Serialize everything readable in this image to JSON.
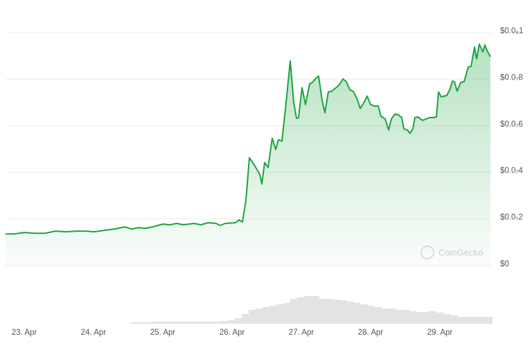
{
  "chart_data": {
    "type": "area",
    "watermark": "CoinGecko",
    "xlim": [
      22.73,
      29.73
    ],
    "xticks": [
      {
        "value": 23,
        "label": "23. Apr"
      },
      {
        "value": 24,
        "label": "24. Apr"
      },
      {
        "value": 25,
        "label": "25. Apr"
      },
      {
        "value": 26,
        "label": "26. Apr"
      },
      {
        "value": 27,
        "label": "27. Apr"
      },
      {
        "value": 28,
        "label": "28. Apr"
      },
      {
        "value": 29,
        "label": "29. Apr"
      }
    ],
    "ylim": [
      0,
      1e-07
    ],
    "yticks": [
      {
        "value": 0,
        "label": "$0"
      },
      {
        "value": 2e-08,
        "label": "$0.0₇2"
      },
      {
        "value": 4e-08,
        "label": "$0.0₇4"
      },
      {
        "value": 6e-08,
        "label": "$0.0₇6"
      },
      {
        "value": 8e-08,
        "label": "$0.0₇8"
      },
      {
        "value": 1e-07,
        "label": "$0.0₆1"
      }
    ],
    "grid": true,
    "color": "#1aa33f",
    "x": [
      22.73,
      22.85,
      23.0,
      23.15,
      23.3,
      23.45,
      23.6,
      23.75,
      23.9,
      24.0,
      24.15,
      24.3,
      24.45,
      24.55,
      24.65,
      24.75,
      24.85,
      25.0,
      25.1,
      25.2,
      25.3,
      25.45,
      25.55,
      25.65,
      25.77,
      25.83,
      25.9,
      26.05,
      26.1,
      26.15,
      26.2,
      26.25,
      26.33,
      26.4,
      26.43,
      26.47,
      26.52,
      26.58,
      26.63,
      26.67,
      26.72,
      26.78,
      26.84,
      26.89,
      26.93,
      26.96,
      27.01,
      27.06,
      27.12,
      27.16,
      27.21,
      27.25,
      27.3,
      27.34,
      27.39,
      27.44,
      27.5,
      27.55,
      27.6,
      27.65,
      27.7,
      27.75,
      27.81,
      27.85,
      27.9,
      27.95,
      28.0,
      28.05,
      28.11,
      28.15,
      28.21,
      28.26,
      28.3,
      28.35,
      28.4,
      28.45,
      28.48,
      28.53,
      28.57,
      28.61,
      28.64,
      28.68,
      28.75,
      28.8,
      28.85,
      28.9,
      28.95,
      28.98,
      29.02,
      29.1,
      29.15,
      29.18,
      29.21,
      29.25,
      29.3,
      29.35,
      29.41,
      29.45,
      29.5,
      29.53,
      29.57,
      29.62,
      29.65,
      29.68,
      29.73
    ],
    "values": [
      1.36e-08,
      1.36e-08,
      1.42e-08,
      1.39e-08,
      1.39e-08,
      1.48e-08,
      1.45e-08,
      1.48e-08,
      1.48e-08,
      1.45e-08,
      1.51e-08,
      1.57e-08,
      1.66e-08,
      1.57e-08,
      1.63e-08,
      1.6e-08,
      1.66e-08,
      1.78e-08,
      1.75e-08,
      1.81e-08,
      1.75e-08,
      1.81e-08,
      1.75e-08,
      1.84e-08,
      1.81e-08,
      1.72e-08,
      1.81e-08,
      1.84e-08,
      1.96e-08,
      1.87e-08,
      2.79e-08,
      4.63e-08,
      4.27e-08,
      3.92e-08,
      3.5e-08,
      4.42e-08,
      4.21e-08,
      5.46e-08,
      4.98e-08,
      5.4e-08,
      5.34e-08,
      7e-08,
      8.78e-08,
      7e-08,
      6.32e-08,
      6.35e-08,
      7.63e-08,
      6.91e-08,
      7.8e-08,
      7.86e-08,
      8.04e-08,
      8.13e-08,
      7.09e-08,
      6.56e-08,
      7.45e-08,
      7.48e-08,
      7.63e-08,
      7.77e-08,
      8.01e-08,
      7.89e-08,
      7.54e-08,
      7.48e-08,
      7.12e-08,
      6.74e-08,
      6.97e-08,
      7.27e-08,
      6.91e-08,
      6.85e-08,
      6.85e-08,
      6.41e-08,
      6.29e-08,
      5.82e-08,
      6.29e-08,
      6.5e-08,
      6.47e-08,
      6.35e-08,
      5.87e-08,
      5.82e-08,
      5.67e-08,
      5.87e-08,
      6.35e-08,
      6.38e-08,
      6.23e-08,
      6.29e-08,
      6.35e-08,
      6.35e-08,
      6.38e-08,
      7.45e-08,
      7.24e-08,
      7.3e-08,
      7.6e-08,
      7.92e-08,
      7.89e-08,
      7.48e-08,
      7.86e-08,
      7.89e-08,
      8.52e-08,
      8.55e-08,
      9.38e-08,
      8.87e-08,
      9.5e-08,
      9.17e-08,
      9.47e-08,
      9.23e-08,
      8.96e-08
    ],
    "volume": {
      "color": "#e3e3e3",
      "x": [
        24.6,
        24.7,
        24.8,
        24.9,
        25.0,
        25.1,
        25.2,
        25.3,
        25.4,
        25.5,
        25.6,
        25.7,
        25.8,
        25.9,
        26.0,
        26.1,
        26.2,
        26.3,
        26.4,
        26.5,
        26.6,
        26.7,
        26.8,
        26.9,
        27.0,
        27.1,
        27.2,
        27.3,
        27.4,
        27.5,
        27.6,
        27.7,
        27.8,
        27.9,
        28.0,
        28.1,
        28.2,
        28.3,
        28.4,
        28.5,
        28.6,
        28.7,
        28.8,
        28.9,
        29.0,
        29.1,
        29.2,
        29.3,
        29.4,
        29.5,
        29.6,
        29.7
      ],
      "values": [
        2,
        2,
        2,
        3,
        3,
        3,
        3,
        3,
        3,
        3,
        3,
        3,
        3,
        4,
        5,
        8,
        14,
        20,
        22,
        24,
        26,
        28,
        30,
        36,
        38,
        40,
        40,
        36,
        36,
        35,
        34,
        32,
        30,
        28,
        26,
        24,
        22,
        22,
        20,
        20,
        18,
        17,
        17,
        18,
        16,
        14,
        12,
        10,
        10,
        10,
        10,
        10
      ]
    }
  }
}
